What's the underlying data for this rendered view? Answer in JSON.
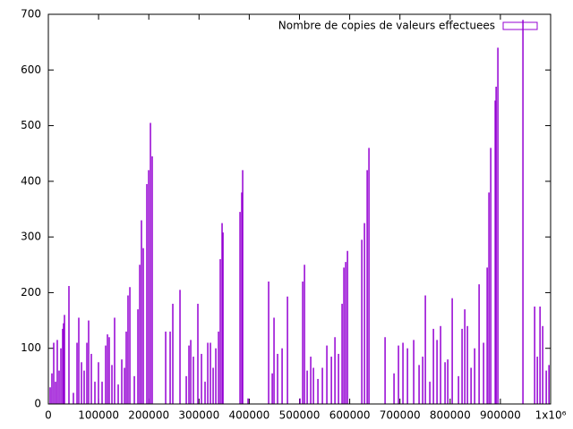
{
  "chart_data": {
    "type": "impulse",
    "x": [
      3600,
      7100,
      10700,
      14300,
      17800,
      21400,
      25000,
      28500,
      30300,
      32100,
      41000,
      49900,
      57100,
      60600,
      66000,
      71300,
      76700,
      80200,
      85600,
      92700,
      99800,
      107000,
      114100,
      117700,
      121200,
      126600,
      131900,
      139100,
      146200,
      151600,
      155100,
      158600,
      162300,
      171200,
      178300,
      181900,
      185400,
      189000,
      196100,
      199700,
      203300,
      206800,
      233600,
      242500,
      247800,
      262100,
      274600,
      279900,
      283500,
      288800,
      297700,
      304900,
      312000,
      317400,
      322700,
      328100,
      333400,
      338800,
      342300,
      345900,
      347700,
      381600,
      385100,
      386900,
      397600,
      438600,
      445800,
      449300,
      456400,
      465400,
      476100,
      501000,
      506400,
      510000,
      515300,
      522400,
      527800,
      536700,
      545600,
      554500,
      563500,
      570600,
      577700,
      584800,
      588400,
      592000,
      595600,
      624100,
      629400,
      634800,
      638300,
      670400,
      688200,
      697100,
      706000,
      715000,
      727400,
      738100,
      745300,
      750600,
      759500,
      766700,
      773800,
      780900,
      789800,
      795200,
      804100,
      816600,
      823700,
      829100,
      834400,
      841600,
      848700,
      857600,
      866500,
      873700,
      877200,
      880800,
      889700,
      891500,
      895000,
      944900,
      968200,
      973500,
      978900,
      984200,
      991300,
      996700
    ],
    "series": [
      {
        "name": "Nombre de copies de valeurs effectuees",
        "color": "#9400d3",
        "values": [
          30,
          55,
          110,
          40,
          115,
          60,
          100,
          135,
          145,
          160,
          212,
          20,
          110,
          155,
          75,
          60,
          110,
          150,
          90,
          40,
          75,
          40,
          105,
          125,
          120,
          70,
          155,
          35,
          80,
          65,
          130,
          195,
          210,
          50,
          170,
          250,
          330,
          280,
          395,
          420,
          505,
          445,
          130,
          130,
          180,
          205,
          50,
          105,
          115,
          85,
          180,
          90,
          40,
          110,
          110,
          65,
          100,
          130,
          260,
          325,
          308,
          345,
          380,
          420,
          10,
          220,
          55,
          155,
          90,
          100,
          193,
          10,
          220,
          250,
          60,
          85,
          65,
          45,
          65,
          105,
          85,
          120,
          90,
          180,
          245,
          255,
          275,
          295,
          325,
          420,
          460,
          120,
          55,
          105,
          110,
          100,
          115,
          70,
          85,
          195,
          40,
          135,
          115,
          140,
          75,
          80,
          190,
          50,
          135,
          170,
          140,
          65,
          100,
          215,
          110,
          245,
          380,
          460,
          545,
          570,
          640,
          690,
          175,
          85,
          175,
          140,
          60,
          70
        ]
      }
    ],
    "xlim": [
      0,
      1000000
    ],
    "xticks": [
      0,
      100000,
      200000,
      300000,
      400000,
      500000,
      600000,
      700000,
      800000,
      900000,
      {
        "value": 1000000,
        "label": "1x10⁶"
      }
    ],
    "ylim": [
      0,
      700
    ],
    "yticks": [
      0,
      100,
      200,
      300,
      400,
      500,
      600,
      700
    ],
    "legend": "top-right"
  }
}
